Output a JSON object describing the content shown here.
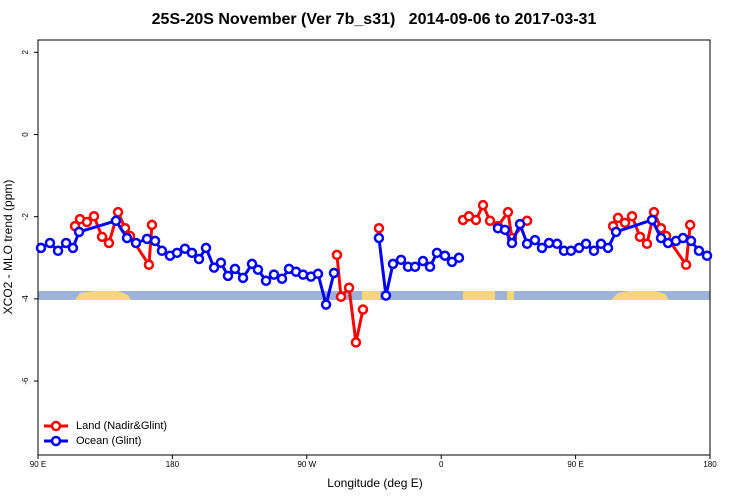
{
  "chart_data": {
    "type": "line",
    "title": "25S-20S November (Ver 7b_s31)   2014-09-06 to 2017-03-31",
    "xlabel": "Longitude (deg E)",
    "ylabel": "XCO2 - MLO trend (ppm)",
    "xlim": [
      90,
      540
    ],
    "xticks": [
      {
        "value": 90,
        "label": "90 E"
      },
      {
        "value": 180,
        "label": "180"
      },
      {
        "value": 270,
        "label": "90 W"
      },
      {
        "value": 360,
        "label": "0"
      },
      {
        "value": 450,
        "label": "90 E"
      },
      {
        "value": 540,
        "label": "180"
      }
    ],
    "ylim": [
      -7.8,
      2.3
    ],
    "yticks": [
      -6,
      -4,
      -2,
      0,
      2
    ],
    "legend": "bottomleft",
    "series": [
      {
        "name": "Land (Nadir&Glint)",
        "color": "#ff0000",
        "x": [
          114.8,
          118.1,
          122.8,
          127.5,
          132.9,
          137.5,
          143.6,
          148.3,
          151.6,
          164.3,
          166.3,
          null,
          290.2,
          292.9,
          298.3,
          302.9,
          307.6,
          null,
          318.3,
          null,
          374.6,
          378.6,
          383.3,
          388.0,
          392.7,
          398.0,
          404.7,
          407.4,
          417.5,
          null,
          475.1,
          478.4,
          483.1,
          487.8,
          493.1,
          497.8,
          502.5,
          507.2,
          510.6,
          524.0,
          526.7
        ],
        "values": [
          -2.23,
          -2.06,
          -2.13,
          -1.99,
          -2.49,
          -2.64,
          -1.89,
          -2.28,
          -2.47,
          -3.17,
          -2.2,
          null,
          -2.93,
          -3.95,
          -3.73,
          -5.06,
          -4.26,
          null,
          -2.28,
          null,
          -2.08,
          -1.99,
          -2.08,
          -1.72,
          -2.1,
          -2.23,
          -1.89,
          -2.52,
          -2.1,
          null,
          -2.23,
          -2.03,
          -2.15,
          -1.99,
          -2.49,
          -2.66,
          -1.89,
          -2.28,
          -2.47,
          -3.17,
          -2.2
        ]
      },
      {
        "name": "Ocean (Glint)",
        "color": "#0000ff",
        "x": [
          92.0,
          98.0,
          103.4,
          108.8,
          113.4,
          117.5,
          142.2,
          149.6,
          155.6,
          163.0,
          168.4,
          173.0,
          178.4,
          183.1,
          188.4,
          193.1,
          197.8,
          202.5,
          207.9,
          212.5,
          217.2,
          221.9,
          227.3,
          233.3,
          237.3,
          242.7,
          248.0,
          253.4,
          258.1,
          262.8,
          267.5,
          272.8,
          277.5,
          282.9,
          288.2,
          null,
          318.3,
          323.0,
          327.7,
          333.1,
          337.8,
          342.5,
          347.8,
          352.5,
          357.2,
          362.5,
          367.2,
          371.9,
          null,
          398.0,
          402.7,
          407.4,
          412.8,
          417.5,
          422.8,
          427.5,
          432.2,
          437.6,
          442.2,
          446.9,
          452.3,
          457.0,
          462.3,
          467.0,
          471.7,
          477.1,
          501.2,
          507.2,
          511.9,
          517.2,
          521.9,
          527.3,
          532.6,
          538.0
        ],
        "values": [
          -2.76,
          -2.64,
          -2.83,
          -2.64,
          -2.76,
          -2.37,
          -2.1,
          -2.52,
          -2.64,
          -2.54,
          -2.59,
          -2.83,
          -2.95,
          -2.88,
          -2.78,
          -2.88,
          -3.03,
          -2.76,
          -3.24,
          -3.12,
          -3.44,
          -3.27,
          -3.49,
          -3.15,
          -3.29,
          -3.56,
          -3.41,
          -3.51,
          -3.27,
          -3.34,
          -3.41,
          -3.46,
          -3.39,
          -4.14,
          -3.37,
          null,
          -2.52,
          -3.92,
          -3.15,
          -3.05,
          -3.22,
          -3.22,
          -3.08,
          -3.22,
          -2.88,
          -2.95,
          -3.1,
          -3.0,
          null,
          -2.28,
          -2.32,
          -2.64,
          -2.18,
          -2.66,
          -2.57,
          -2.76,
          -2.64,
          -2.66,
          -2.83,
          -2.83,
          -2.76,
          -2.66,
          -2.83,
          -2.66,
          -2.76,
          -2.37,
          -2.08,
          -2.52,
          -2.64,
          -2.59,
          -2.52,
          -2.59,
          -2.83,
          -2.95
        ]
      }
    ]
  }
}
